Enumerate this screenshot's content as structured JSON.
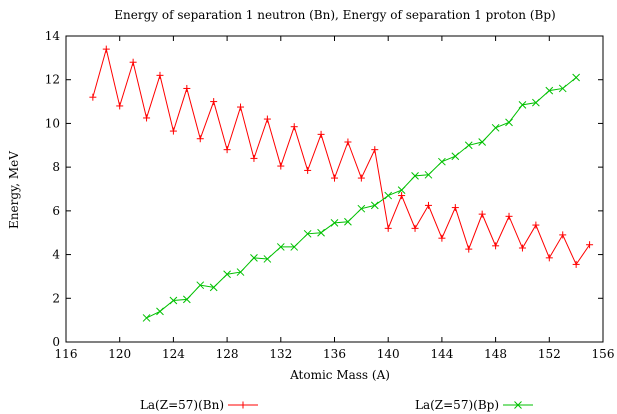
{
  "chart_data": {
    "type": "line",
    "title": "Energy of separation 1 neutron (Bn), Energy of separation 1 proton (Bp)",
    "xlabel": "Atomic Mass (A)",
    "ylabel": "Energy, MeV",
    "xlim": [
      116,
      156
    ],
    "ylim": [
      0,
      14
    ],
    "xticks": [
      116,
      120,
      124,
      128,
      132,
      136,
      140,
      144,
      148,
      152,
      156
    ],
    "yticks": [
      0,
      2,
      4,
      6,
      8,
      10,
      12,
      14
    ],
    "grid": false,
    "legend_position": "bottom",
    "series": [
      {
        "name": "La(Z=57)(Bn)",
        "color": "#ff0000",
        "marker": "plus",
        "x": [
          118,
          119,
          120,
          121,
          122,
          123,
          124,
          125,
          126,
          127,
          128,
          129,
          130,
          131,
          132,
          133,
          134,
          135,
          136,
          137,
          138,
          139,
          140,
          141,
          142,
          143,
          144,
          145,
          146,
          147,
          148,
          149,
          150,
          151,
          152,
          153,
          154,
          155
        ],
        "y": [
          11.2,
          13.4,
          10.8,
          12.8,
          10.25,
          12.2,
          9.65,
          11.6,
          9.3,
          11.0,
          8.8,
          10.75,
          8.4,
          10.2,
          8.05,
          9.85,
          7.85,
          9.5,
          7.5,
          9.15,
          7.5,
          8.8,
          5.2,
          6.7,
          5.2,
          6.25,
          4.75,
          6.15,
          4.25,
          5.85,
          4.4,
          5.75,
          4.3,
          5.35,
          3.85,
          4.9,
          3.55,
          4.45
        ]
      },
      {
        "name": "La(Z=57)(Bp)",
        "color": "#00c000",
        "marker": "cross",
        "x": [
          122,
          123,
          124,
          125,
          126,
          127,
          128,
          129,
          130,
          131,
          132,
          133,
          134,
          135,
          136,
          137,
          138,
          139,
          140,
          141,
          142,
          143,
          144,
          145,
          146,
          147,
          148,
          149,
          150,
          151,
          152,
          153,
          154
        ],
        "y": [
          1.1,
          1.4,
          1.9,
          1.95,
          2.6,
          2.5,
          3.1,
          3.2,
          3.85,
          3.8,
          4.35,
          4.35,
          4.95,
          5.0,
          5.45,
          5.5,
          6.1,
          6.25,
          6.7,
          6.95,
          7.6,
          7.65,
          8.25,
          8.5,
          9.0,
          9.15,
          9.8,
          10.05,
          10.85,
          10.95,
          11.5,
          11.6,
          12.1
        ]
      }
    ]
  }
}
